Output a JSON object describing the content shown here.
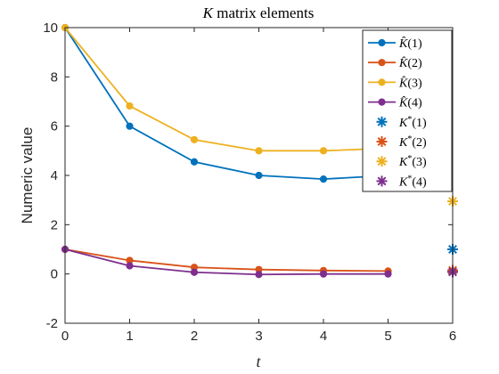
{
  "chart_data": {
    "type": "line",
    "title": "K matrix elements",
    "title_parts": {
      "var": "K",
      "rest": " matrix elements"
    },
    "xlabel": "t",
    "ylabel": "Numeric value",
    "xlim": [
      0,
      6
    ],
    "ylim": [
      -2,
      10
    ],
    "xticks": [
      0,
      1,
      2,
      3,
      4,
      5,
      6
    ],
    "yticks": [
      -2,
      0,
      2,
      4,
      6,
      8,
      10
    ],
    "x": [
      0,
      1,
      2,
      3,
      4,
      5
    ],
    "legend_position": "top-right",
    "series": [
      {
        "name": "K̂(1)",
        "color": "#0072BD",
        "marker": "circle",
        "values": [
          10,
          6.0,
          4.55,
          4.0,
          3.85,
          4.0
        ]
      },
      {
        "name": "K̂(2)",
        "color": "#D95319",
        "marker": "circle",
        "values": [
          1.0,
          0.55,
          0.27,
          0.18,
          0.14,
          0.12
        ]
      },
      {
        "name": "K̂(3)",
        "color": "#EDB120",
        "marker": "circle",
        "values": [
          10,
          6.82,
          5.45,
          5.0,
          5.0,
          5.1
        ]
      },
      {
        "name": "K̂(4)",
        "color": "#7E2F8E",
        "marker": "circle",
        "values": [
          1.0,
          0.33,
          0.07,
          -0.02,
          0.0,
          0.0
        ]
      }
    ],
    "reference_points": [
      {
        "name": "K*(1)",
        "color": "#0072BD",
        "marker": "asterisk",
        "x": 6,
        "y": 1.0
      },
      {
        "name": "K*(2)",
        "color": "#D95319",
        "marker": "asterisk",
        "x": 6,
        "y": 0.15
      },
      {
        "name": "K*(3)",
        "color": "#EDB120",
        "marker": "asterisk",
        "x": 6,
        "y": 2.95
      },
      {
        "name": "K*(4)",
        "color": "#7E2F8E",
        "marker": "asterisk",
        "x": 6,
        "y": 0.08
      }
    ]
  }
}
